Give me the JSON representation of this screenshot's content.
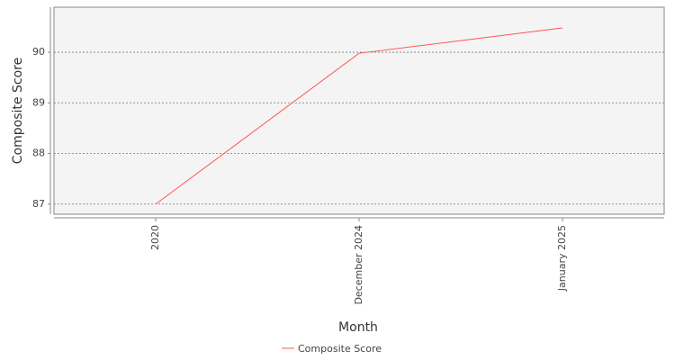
{
  "chart_data": {
    "type": "line",
    "x_label": "Month",
    "y_label": "Composite Score",
    "categories": [
      "2020",
      "December 2024",
      "January 2025"
    ],
    "series": [
      {
        "name": "Composite Score",
        "color": "#ff5555",
        "values": [
          87.0,
          89.98,
          90.48
        ]
      }
    ],
    "ylim": [
      86.8,
      90.89
    ],
    "yticks": [
      87,
      88,
      89,
      90
    ],
    "grid": true,
    "legend": "bottom"
  }
}
